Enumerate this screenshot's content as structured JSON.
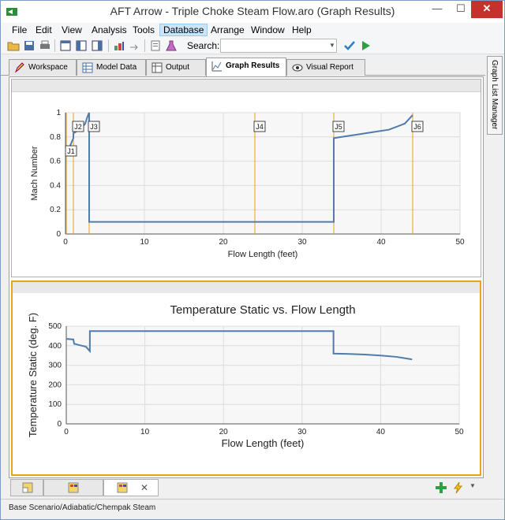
{
  "window": {
    "title": "AFT Arrow - Triple Choke Steam Flow.aro (Graph Results)",
    "minimize": "—",
    "maximize": "☐",
    "close": "✕"
  },
  "menu": [
    "File",
    "Edit",
    "View",
    "Analysis",
    "Tools",
    "Database",
    "Arrange",
    "Window",
    "Help"
  ],
  "toolbar": {
    "search_label": "Search:",
    "search_value": ""
  },
  "tabs": [
    "Workspace",
    "Model Data",
    "Output",
    "Graph Results",
    "Visual Report"
  ],
  "active_tab": "Graph Results",
  "side_panel": {
    "label": "Graph List Manager"
  },
  "colors": {
    "accent": "#e8a317",
    "series": "#4f7cac",
    "junction_line": "#e8a317"
  },
  "chart_data": [
    {
      "type": "line",
      "title": "",
      "xlabel": "Flow Length (feet)",
      "ylabel": "Mach Number",
      "xlim": [
        0,
        50
      ],
      "ylim": [
        0,
        1
      ],
      "x_ticks": [
        "0",
        "10",
        "20",
        "30",
        "40",
        "50"
      ],
      "y_ticks": [
        "0",
        "0.2",
        "0.4",
        "0.6",
        "0.8",
        "1"
      ],
      "grid": true,
      "junctions": [
        {
          "label": "J1",
          "x": 0.1
        },
        {
          "label": "J2",
          "x": 1.0
        },
        {
          "label": "J3",
          "x": 3.0
        },
        {
          "label": "J4",
          "x": 24.0
        },
        {
          "label": "J5",
          "x": 34.0
        },
        {
          "label": "J6",
          "x": 44.0
        }
      ],
      "series": [
        {
          "x": [
            0,
            0.3,
            0.6,
            1.0,
            1.0,
            1.5,
            2.0,
            2.5,
            2.8,
            3.0,
            3.0,
            34.0,
            34.0,
            35,
            37,
            39,
            41,
            43,
            44
          ],
          "y": [
            0.72,
            0.68,
            0.73,
            0.79,
            0.83,
            0.85,
            0.87,
            0.91,
            0.97,
            1.0,
            0.1,
            0.1,
            0.79,
            0.8,
            0.82,
            0.84,
            0.86,
            0.91,
            0.98
          ]
        }
      ]
    },
    {
      "type": "line",
      "title": "Temperature Static vs. Flow Length",
      "xlabel": "Flow Length (feet)",
      "ylabel": "Temperature Static (deg. F)",
      "xlim": [
        0,
        50
      ],
      "ylim": [
        0,
        500
      ],
      "x_ticks": [
        "0",
        "10",
        "20",
        "30",
        "40",
        "50"
      ],
      "y_ticks": [
        "0",
        "100",
        "200",
        "300",
        "400",
        "500"
      ],
      "grid": true,
      "series": [
        {
          "x": [
            0,
            0.9,
            1.0,
            2.0,
            2.5,
            3.0,
            3.0,
            34.0,
            34.0,
            36,
            38,
            40,
            42,
            44
          ],
          "y": [
            435,
            432,
            410,
            400,
            395,
            372,
            475,
            475,
            360,
            358,
            355,
            350,
            343,
            330
          ]
        }
      ]
    }
  ],
  "bottom_tabs": {
    "close": "✕"
  },
  "status": {
    "text": "Base Scenario/Adiabatic/Chempak Steam"
  }
}
